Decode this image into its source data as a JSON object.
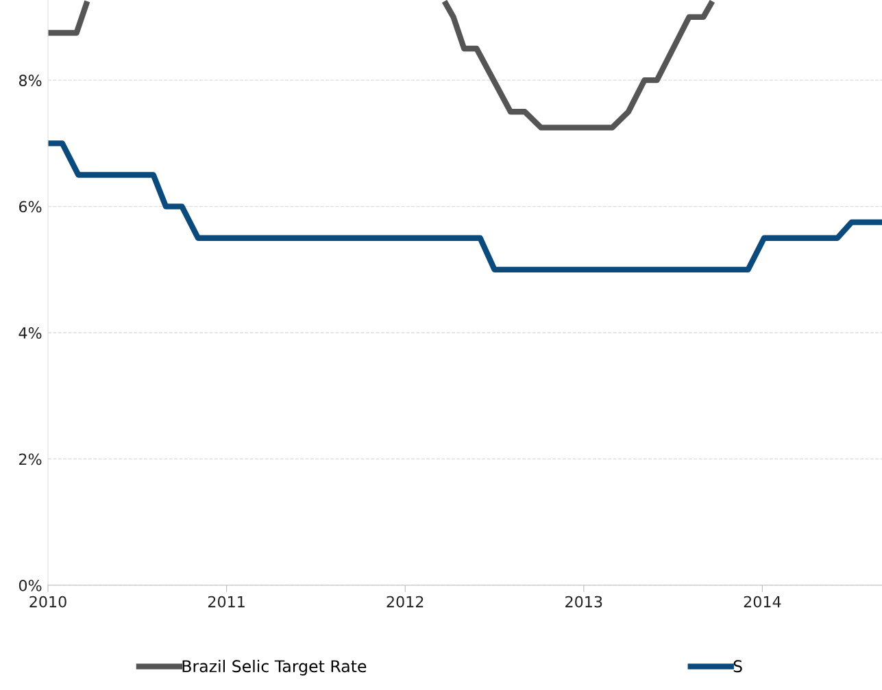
{
  "chart_data": {
    "type": "line",
    "series": [
      {
        "name": "Brazil Selic Target Rate",
        "color": "#555555",
        "x": [
          2010,
          2010.16,
          2010.22,
          2010.23,
          2012.22,
          2012.27,
          2012.33,
          2012.4,
          2012.59,
          2012.67,
          2012.76,
          2013.16,
          2013.25,
          2013.34,
          2013.41,
          2013.59,
          2013.67,
          2013.72
        ],
        "values": [
          8.75,
          8.75,
          9.25,
          null,
          9.25,
          9.0,
          8.5,
          8.5,
          7.5,
          7.5,
          7.25,
          7.25,
          7.5,
          8.0,
          8.0,
          9.0,
          9.0,
          9.25
        ]
      },
      {
        "name": "S",
        "color": "#0b4a7d",
        "x": [
          2010,
          2010.08,
          2010.17,
          2010.59,
          2010.66,
          2010.75,
          2010.84,
          2012.42,
          2012.5,
          2013.92,
          2014.01,
          2014.42,
          2014.5,
          2014.67
        ],
        "values": [
          7.0,
          7.0,
          6.5,
          6.5,
          6.0,
          6.0,
          5.5,
          5.5,
          5.0,
          5.0,
          5.5,
          5.5,
          5.75,
          5.75
        ]
      }
    ],
    "xlim": [
      2010,
      2014.67
    ],
    "xticks": [
      2010,
      2011,
      2012,
      2013,
      2014
    ],
    "ylim": [
      0,
      9.27
    ],
    "yticks": [
      {
        "value": 0,
        "label": "0%"
      },
      {
        "value": 2,
        "label": "2%"
      },
      {
        "value": 4,
        "label": "4%"
      },
      {
        "value": 6,
        "label": "6%"
      },
      {
        "value": 8,
        "label": "8%"
      }
    ],
    "grid": "y",
    "legend": "bottom",
    "marker": "none",
    "line_style": "solid"
  }
}
